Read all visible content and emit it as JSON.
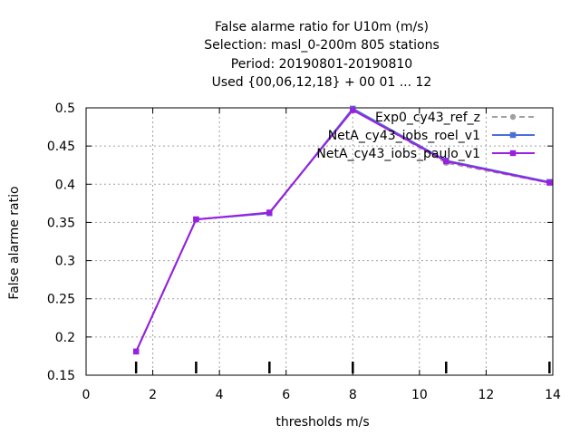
{
  "chart_data": {
    "type": "line",
    "title_lines": [
      "False alarme ratio  for U10m (m/s)",
      "Selection: masl_0-200m    805 stations",
      "Period: 20190801-20190810",
      "Used {00,06,12,18} + 00 01 ... 12"
    ],
    "xlabel": "thresholds m/s",
    "ylabel": "False alarme ratio",
    "xlim": [
      0,
      14
    ],
    "ylim": [
      0.15,
      0.5
    ],
    "xticks": [
      "0",
      "2",
      "4",
      "6",
      "8",
      "10",
      "12",
      "14"
    ],
    "yticks": [
      "0.15",
      "0.2",
      "0.25",
      "0.3",
      "0.35",
      "0.4",
      "0.45",
      "0.5"
    ],
    "grid": true,
    "legend_position": "top-right",
    "threshold_markers_x": [
      1.5,
      3.3,
      5.5,
      8.0,
      10.8,
      13.9
    ],
    "series": [
      {
        "name": "Exp0_cy43_ref_z",
        "color": "#a0a0a0",
        "marker": "circle",
        "dash": true,
        "x": [
          1.5,
          3.3,
          5.5,
          8.0,
          10.8,
          13.9
        ],
        "y": [
          0.181,
          0.354,
          0.362,
          0.498,
          0.428,
          0.402
        ]
      },
      {
        "name": "NetA_cy43_iobs_roel_v1",
        "color": "#4a6fd6",
        "marker": "square",
        "dash": false,
        "x": [
          1.5,
          3.3,
          5.5,
          8.0,
          10.8,
          13.9
        ],
        "y": [
          0.181,
          0.354,
          0.362,
          0.499,
          0.431,
          0.403
        ]
      },
      {
        "name": "NetA_cy43_iobs_paulo_v1",
        "color": "#9b1fe0",
        "marker": "square",
        "dash": false,
        "x": [
          1.5,
          3.3,
          5.5,
          8.0,
          10.8,
          13.9
        ],
        "y": [
          0.181,
          0.354,
          0.363,
          0.497,
          0.43,
          0.402
        ]
      }
    ]
  }
}
